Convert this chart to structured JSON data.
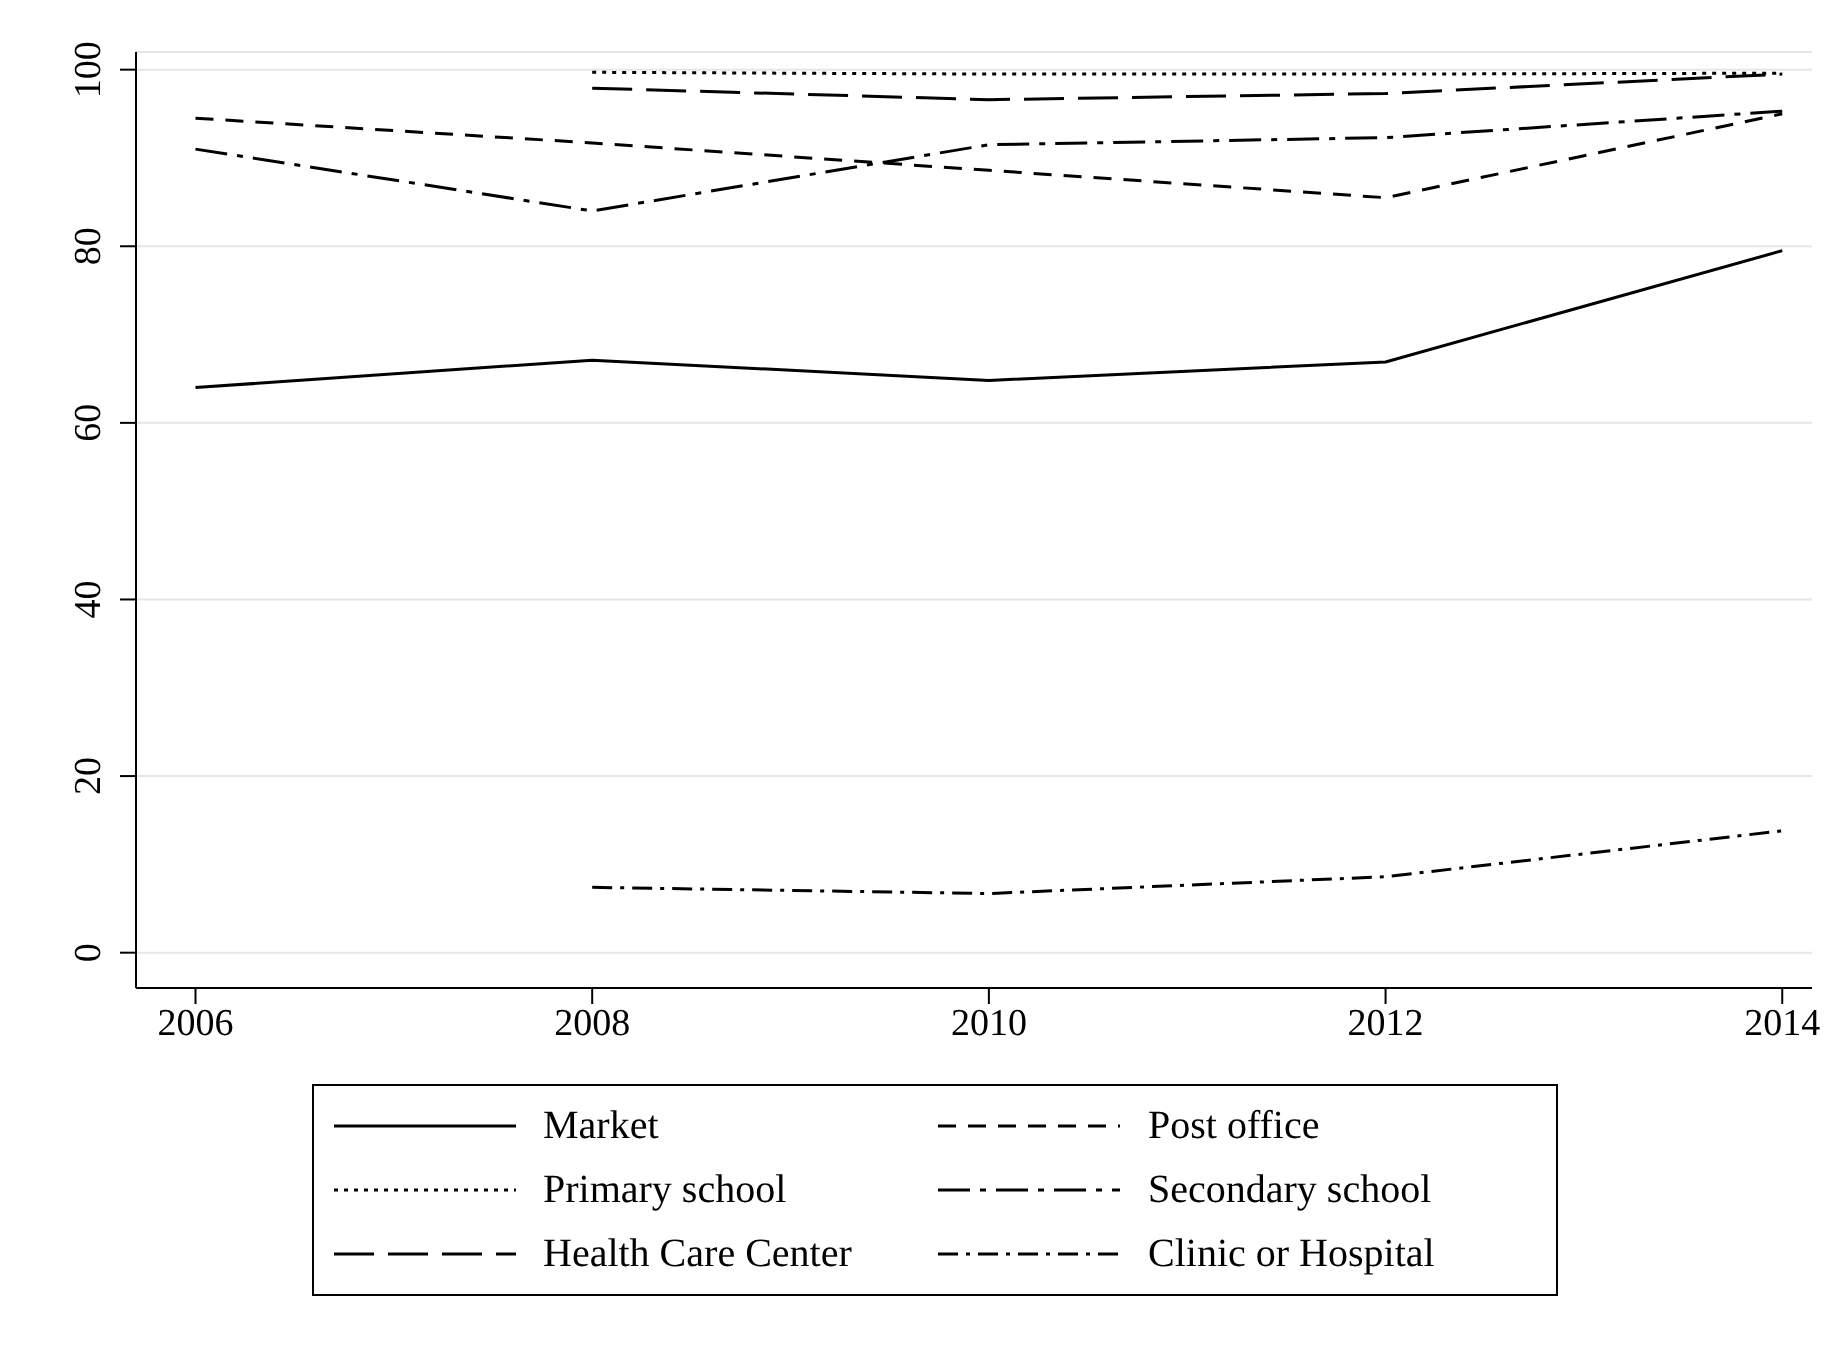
{
  "chart_data": {
    "type": "line",
    "x": [
      2006,
      2008,
      2010,
      2012,
      2014
    ],
    "xlim": [
      2005.7,
      2014.15
    ],
    "xticks": [
      2006,
      2008,
      2010,
      2012,
      2014
    ],
    "ylim": [
      -4,
      102
    ],
    "yticks": [
      0,
      20,
      40,
      60,
      80,
      100
    ],
    "grid": "y",
    "legend": "bottom",
    "marker": "none",
    "series": [
      {
        "name": "Market",
        "color": "#000000",
        "line_style": "solid",
        "values": [
          64.0,
          67.1,
          64.8,
          66.9,
          79.5
        ]
      },
      {
        "name": "Post office",
        "color": "#000000",
        "line_style": "dashed",
        "values": [
          94.5,
          91.7,
          88.6,
          85.5,
          95.0
        ]
      },
      {
        "name": "Primary school",
        "color": "#000000",
        "line_style": "dotted",
        "values": [
          null,
          99.7,
          99.5,
          99.5,
          99.6
        ]
      },
      {
        "name": "Secondary school",
        "color": "#000000",
        "line_style": "dashdot",
        "values": [
          91.0,
          84.0,
          91.5,
          92.3,
          95.3
        ]
      },
      {
        "name": "Health Care Center",
        "color": "#000000",
        "line_style": "longdash",
        "values": [
          null,
          97.9,
          96.6,
          97.3,
          99.5
        ]
      },
      {
        "name": "Clinic or Hospital",
        "color": "#000000",
        "line_style": "dashdotdot",
        "values": [
          null,
          7.4,
          6.7,
          8.6,
          13.8
        ]
      }
    ]
  }
}
